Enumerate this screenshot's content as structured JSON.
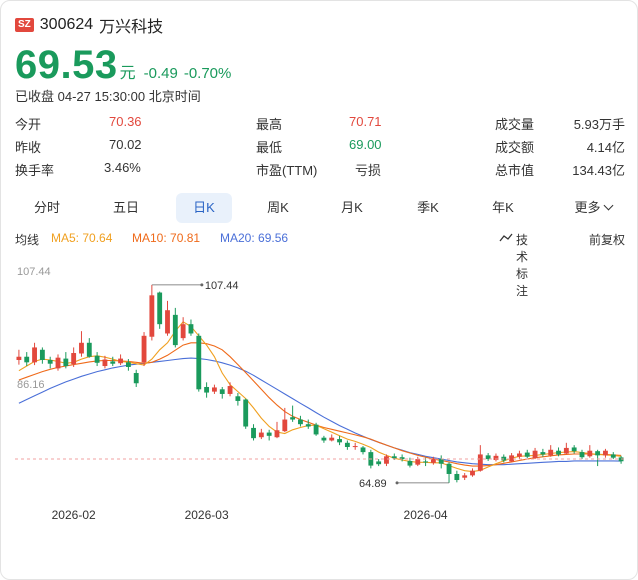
{
  "header": {
    "market_badge": "SZ",
    "stock_code": "300624",
    "stock_name": "万兴科技"
  },
  "quote": {
    "price": "69.53",
    "unit": "元",
    "change": "-0.49",
    "change_pct": "-0.70%",
    "status": "已收盘 04-27 15:30:00 北京时间"
  },
  "stats": [
    [
      {
        "label": "今开",
        "value": "70.36",
        "color": "red"
      },
      {
        "label": "最高",
        "value": "70.71",
        "color": "red"
      },
      {
        "label": "成交量",
        "value": "5.93万手",
        "color": "dark"
      }
    ],
    [
      {
        "label": "昨收",
        "value": "70.02",
        "color": "dark"
      },
      {
        "label": "最低",
        "value": "69.00",
        "color": "green"
      },
      {
        "label": "成交额",
        "value": "4.14亿",
        "color": "dark"
      }
    ],
    [
      {
        "label": "换手率",
        "value": "3.46%",
        "color": "dark"
      },
      {
        "label": "市盈(TTM)",
        "value": "亏损",
        "color": "dark"
      },
      {
        "label": "总市值",
        "value": "134.43亿",
        "color": "dark"
      }
    ]
  ],
  "tabs": [
    "分时",
    "五日",
    "日K",
    "周K",
    "月K",
    "季K",
    "年K",
    "更多"
  ],
  "active_tab": "日K",
  "ma_bar": {
    "label": "均线",
    "ma5": "MA5: 70.64",
    "ma10": "MA10: 70.81",
    "ma20": "MA20: 69.56",
    "indicator": "技术标注",
    "adjust": "前复权"
  },
  "colors": {
    "up": "#e2483d",
    "down": "#1a9a5c",
    "ma5": "#f0a020",
    "ma10": "#ef6a1a",
    "ma20": "#4a6fd8",
    "accent": "#2a64c5"
  },
  "chart_data": {
    "type": "candlestick",
    "y_top_label": "107.44",
    "y_mid_label": "86.16",
    "y_low_label": "64.89",
    "ylim": [
      64.0,
      110.0
    ],
    "reference_price": 70.02,
    "max_marker": "107.44",
    "min_marker": "64.89",
    "x_ticks": [
      {
        "label": "2026-02",
        "index": 7
      },
      {
        "label": "2026-03",
        "index": 24
      },
      {
        "label": "2026-04",
        "index": 52
      }
    ],
    "candles": [
      [
        91.3,
        92.0,
        93.5,
        90.3
      ],
      [
        92.0,
        90.8,
        93.0,
        90.0
      ],
      [
        90.8,
        94.0,
        95.0,
        90.2
      ],
      [
        93.5,
        91.3,
        94.0,
        90.5
      ],
      [
        91.3,
        90.5,
        92.0,
        89.5
      ],
      [
        89.5,
        91.8,
        92.5,
        89.0
      ],
      [
        91.6,
        90.0,
        93.0,
        89.5
      ],
      [
        90.4,
        92.8,
        94.0,
        89.8
      ],
      [
        92.7,
        95.0,
        97.5,
        92.0
      ],
      [
        95.0,
        92.0,
        96.0,
        91.8
      ],
      [
        92.2,
        90.7,
        93.0,
        90.0
      ],
      [
        90.0,
        91.4,
        92.2,
        89.5
      ],
      [
        91.0,
        90.5,
        92.0,
        90.0
      ],
      [
        90.6,
        91.6,
        92.5,
        90.2
      ],
      [
        90.8,
        89.8,
        91.5,
        89.0
      ],
      [
        88.5,
        86.3,
        89.2,
        85.5
      ],
      [
        90.8,
        96.5,
        97.3,
        90.0
      ],
      [
        96.3,
        105.2,
        107.44,
        95.5
      ],
      [
        105.8,
        99.0,
        106.0,
        98.0
      ],
      [
        97.0,
        102.0,
        104.0,
        96.5
      ],
      [
        101.0,
        94.5,
        102.5,
        94.0
      ],
      [
        96.0,
        99.0,
        100.5,
        95.5
      ],
      [
        99.0,
        97.0,
        100.0,
        96.5
      ],
      [
        96.5,
        85.0,
        97.0,
        84.5
      ],
      [
        85.5,
        84.3,
        86.5,
        83.2
      ],
      [
        84.5,
        85.4,
        86.0,
        84.0
      ],
      [
        85.0,
        84.0,
        85.5,
        83.0
      ],
      [
        84.0,
        85.7,
        86.5,
        83.5
      ],
      [
        83.5,
        82.5,
        84.2,
        81.5
      ],
      [
        82.8,
        77.0,
        83.0,
        76.5
      ],
      [
        76.7,
        74.5,
        77.5,
        74.0
      ],
      [
        74.7,
        75.7,
        76.5,
        74.3
      ],
      [
        75.7,
        75.0,
        76.3,
        74.0
      ],
      [
        74.7,
        76.2,
        78.0,
        74.5
      ],
      [
        76.0,
        78.5,
        81.0,
        75.8
      ],
      [
        79.0,
        78.5,
        81.5,
        78.0
      ],
      [
        78.5,
        77.5,
        79.3,
        77.0
      ],
      [
        77.5,
        77.0,
        78.5,
        76.5
      ],
      [
        77.4,
        75.3,
        77.8,
        75.0
      ],
      [
        74.6,
        74.0,
        75.0,
        73.5
      ],
      [
        74.0,
        74.6,
        75.3,
        73.8
      ],
      [
        74.3,
        73.6,
        75.0,
        73.0
      ],
      [
        73.5,
        72.6,
        74.0,
        72.0
      ],
      [
        72.6,
        72.8,
        73.5,
        72.0
      ],
      [
        72.5,
        71.5,
        72.8,
        71.0
      ],
      [
        71.5,
        68.6,
        72.0,
        68.0
      ],
      [
        69.5,
        68.9,
        70.0,
        68.5
      ],
      [
        69.0,
        70.6,
        71.0,
        68.5
      ],
      [
        70.6,
        70.2,
        71.2,
        69.8
      ],
      [
        70.4,
        70.0,
        71.0,
        69.5
      ],
      [
        69.6,
        68.6,
        70.3,
        68.2
      ],
      [
        68.8,
        70.0,
        70.5,
        68.5
      ],
      [
        69.5,
        69.3,
        70.3,
        68.5
      ],
      [
        69.2,
        70.0,
        70.5,
        68.8
      ],
      [
        70.0,
        69.0,
        70.8,
        68.0
      ],
      [
        69.0,
        66.8,
        69.3,
        64.89
      ],
      [
        66.8,
        65.5,
        67.5,
        65.0
      ],
      [
        66.0,
        66.5,
        67.0,
        65.5
      ],
      [
        66.5,
        67.5,
        68.0,
        66.2
      ],
      [
        67.5,
        71.0,
        73.0,
        67.3
      ],
      [
        70.8,
        70.0,
        71.3,
        69.6
      ],
      [
        69.8,
        70.7,
        71.2,
        69.5
      ],
      [
        70.5,
        69.7,
        71.0,
        69.3
      ],
      [
        69.5,
        70.8,
        71.3,
        69.3
      ],
      [
        70.5,
        71.2,
        71.8,
        70.0
      ],
      [
        71.4,
        70.5,
        72.0,
        70.2
      ],
      [
        70.2,
        71.8,
        72.4,
        70.0
      ],
      [
        71.5,
        71.0,
        72.2,
        70.5
      ],
      [
        70.8,
        72.0,
        73.0,
        70.5
      ],
      [
        71.8,
        71.0,
        72.5,
        70.6
      ],
      [
        71.2,
        72.4,
        73.5,
        71.0
      ],
      [
        72.5,
        71.7,
        73.0,
        71.2
      ],
      [
        71.5,
        70.4,
        72.0,
        70.0
      ],
      [
        70.6,
        71.8,
        73.0,
        70.3
      ],
      [
        71.7,
        70.8,
        72.0,
        68.5
      ],
      [
        70.8,
        71.8,
        72.2,
        70.3
      ],
      [
        71.0,
        70.3,
        71.5,
        70.0
      ],
      [
        70.36,
        69.53,
        70.71,
        69.0
      ]
    ],
    "ma5": [
      89.0,
      90.0,
      91.0,
      91.5,
      91.3,
      91.0,
      90.6,
      90.8,
      91.5,
      92.0,
      92.2,
      91.9,
      91.5,
      91.0,
      90.8,
      90.5,
      90.2,
      91.5,
      93.5,
      95.0,
      97.5,
      99.5,
      98.5,
      96.5,
      94.5,
      92.0,
      88.5,
      86.0,
      84.5,
      83.0,
      81.0,
      78.8,
      77.0,
      75.8,
      75.5,
      76.3,
      76.8,
      77.2,
      77.3,
      76.5,
      75.8,
      75.0,
      74.3,
      73.8,
      73.2,
      72.5,
      71.5,
      70.8,
      70.2,
      69.8,
      69.5,
      69.3,
      69.3,
      69.2,
      69.2,
      68.6,
      68.0,
      67.5,
      67.3,
      67.6,
      68.3,
      69.0,
      69.6,
      70.2,
      70.6,
      70.7,
      70.8,
      71.0,
      71.2,
      71.4,
      71.5,
      71.6,
      71.4,
      71.2,
      71.0,
      70.9,
      70.8,
      70.6
    ],
    "ma10": [
      87.0,
      87.6,
      88.2,
      88.8,
      89.3,
      89.7,
      90.0,
      90.3,
      90.6,
      90.9,
      91.1,
      91.2,
      91.2,
      91.1,
      91.0,
      90.8,
      90.6,
      90.8,
      91.5,
      92.3,
      93.4,
      94.5,
      95.0,
      95.0,
      94.8,
      94.3,
      93.5,
      92.0,
      90.3,
      88.6,
      86.8,
      85.0,
      83.2,
      81.6,
      80.2,
      79.2,
      78.5,
      77.9,
      77.3,
      76.8,
      76.4,
      76.0,
      75.6,
      75.2,
      74.8,
      74.3,
      73.6,
      73.0,
      72.4,
      71.8,
      71.3,
      70.8,
      70.4,
      70.0,
      69.7,
      69.4,
      69.0,
      68.7,
      68.5,
      68.5,
      68.6,
      68.8,
      69.1,
      69.4,
      69.7,
      70.0,
      70.3,
      70.5,
      70.7,
      70.9,
      71.0,
      71.1,
      71.1,
      71.1,
      71.0,
      71.0,
      70.9,
      70.8
    ],
    "ma20": [
      82.0,
      82.8,
      83.6,
      84.4,
      85.2,
      85.9,
      86.6,
      87.2,
      87.8,
      88.3,
      88.8,
      89.2,
      89.6,
      89.9,
      90.2,
      90.4,
      90.6,
      90.8,
      91.0,
      91.2,
      91.4,
      91.6,
      91.7,
      91.6,
      91.4,
      91.1,
      90.7,
      90.2,
      89.6,
      88.9,
      88.0,
      87.0,
      86.0,
      85.0,
      84.0,
      83.0,
      82.0,
      81.0,
      80.0,
      79.0,
      78.1,
      77.2,
      76.4,
      75.6,
      74.9,
      74.2,
      73.6,
      73.0,
      72.4,
      71.9,
      71.4,
      71.0,
      70.6,
      70.3,
      70.0,
      69.7,
      69.4,
      69.2,
      69.0,
      68.9,
      68.8,
      68.8,
      68.8,
      68.9,
      69.0,
      69.1,
      69.2,
      69.3,
      69.4,
      69.5,
      69.5,
      69.6,
      69.6,
      69.6,
      69.6,
      69.6,
      69.6,
      69.56
    ]
  }
}
